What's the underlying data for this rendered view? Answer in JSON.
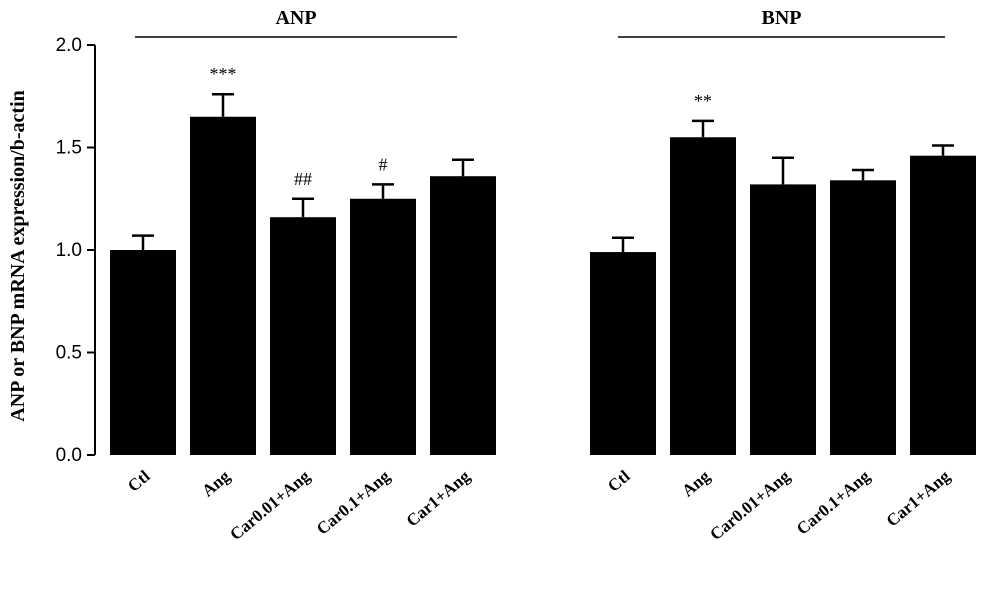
{
  "chart_data": {
    "type": "bar",
    "ylabel": "ANP or BNP mRNA expression/b-actin",
    "ylim": [
      0.0,
      2.0
    ],
    "yticks": [
      "0.0",
      "0.5",
      "1.0",
      "1.5",
      "2.0"
    ],
    "grid": false,
    "groups": [
      {
        "name": "ANP",
        "categories": [
          "Ctl",
          "Ang",
          "Car0.01+Ang",
          "Car0.1+Ang",
          "Car1+Ang"
        ],
        "values": [
          1.0,
          1.65,
          1.16,
          1.25,
          1.36
        ],
        "errors": [
          0.07,
          0.11,
          0.09,
          0.07,
          0.08
        ],
        "annotations": [
          "",
          "***",
          "##",
          "#",
          ""
        ]
      },
      {
        "name": "BNP",
        "categories": [
          "Ctl",
          "Ang",
          "Car0.01+Ang",
          "Car0.1+Ang",
          "Car1+Ang"
        ],
        "values": [
          0.99,
          1.55,
          1.32,
          1.34,
          1.46
        ],
        "errors": [
          0.07,
          0.08,
          0.13,
          0.05,
          0.05
        ],
        "annotations": [
          "",
          "**",
          "",
          "",
          ""
        ]
      }
    ]
  }
}
